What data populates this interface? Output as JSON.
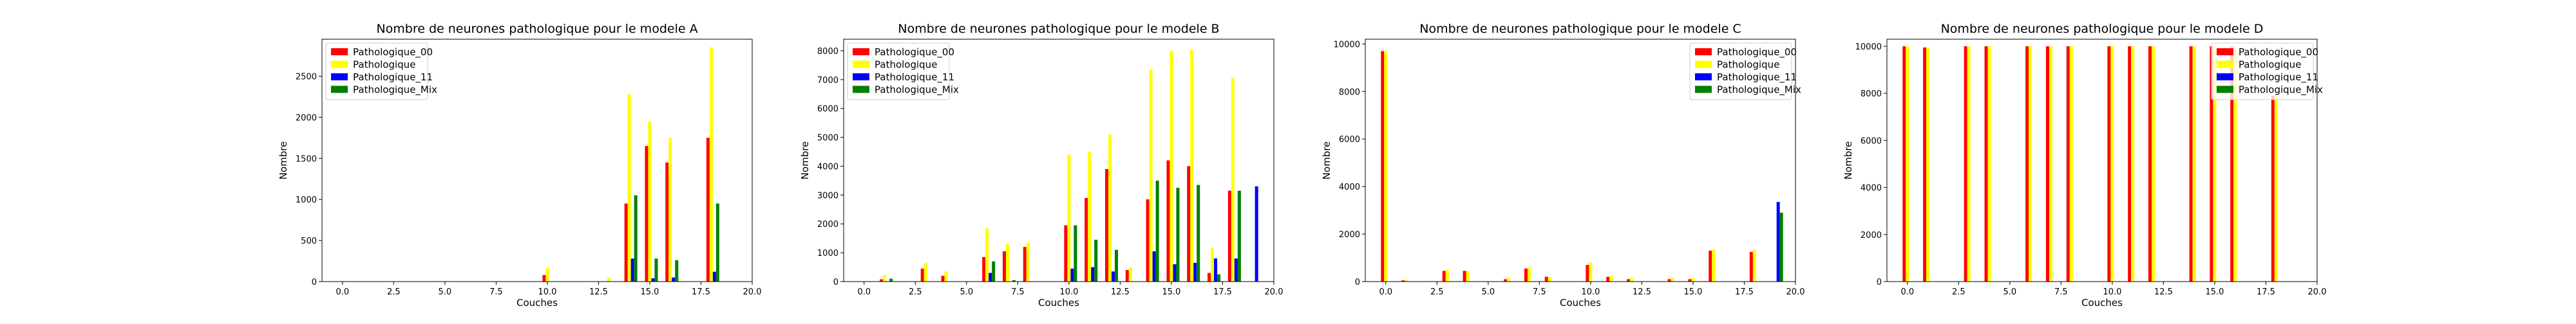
{
  "chart_data": [
    {
      "type": "bar",
      "title": "Nombre de neurones pathologique pour le modele A",
      "xlabel": "Couches",
      "ylabel": "Nombre",
      "xlim": [
        -1,
        20
      ],
      "ylim": [
        0,
        2950
      ],
      "xticks": [
        "0.0",
        "2.5",
        "5.0",
        "7.5",
        "10.0",
        "12.5",
        "15.0",
        "17.5",
        "20.0"
      ],
      "yticks": [
        "0",
        "500",
        "1000",
        "1500",
        "2000",
        "2500"
      ],
      "legend": "upper left",
      "series": [
        {
          "name": "Pathologique_00",
          "color": "#ff0000",
          "x": [
            10,
            14,
            15,
            16,
            18
          ],
          "values": [
            80,
            950,
            1650,
            1450,
            1750
          ]
        },
        {
          "name": "Pathologique",
          "color": "#ffff00",
          "x": [
            10,
            13,
            14,
            15,
            16,
            18
          ],
          "values": [
            170,
            50,
            2280,
            1950,
            1750,
            2850
          ]
        },
        {
          "name": "Pathologique_11",
          "color": "#0000ff",
          "x": [
            14,
            15,
            16,
            18
          ],
          "values": [
            280,
            40,
            50,
            120
          ]
        },
        {
          "name": "Pathologique_Mix",
          "color": "#008000",
          "x": [
            14,
            15,
            16,
            18
          ],
          "values": [
            1050,
            280,
            260,
            950
          ]
        }
      ]
    },
    {
      "type": "bar",
      "title": "Nombre de neurones pathologique pour le modele B",
      "xlabel": "Couches",
      "ylabel": "Nombre",
      "xlim": [
        -1,
        20
      ],
      "ylim": [
        0,
        8400
      ],
      "xticks": [
        "0.0",
        "2.5",
        "5.0",
        "7.5",
        "10.0",
        "12.5",
        "15.0",
        "17.5",
        "20.0"
      ],
      "yticks": [
        "0",
        "1000",
        "2000",
        "3000",
        "4000",
        "5000",
        "6000",
        "7000",
        "8000"
      ],
      "legend": "upper left",
      "series": [
        {
          "name": "Pathologique_00",
          "color": "#ff0000",
          "x": [
            1,
            3,
            4,
            6,
            7,
            8,
            10,
            11,
            12,
            13,
            14,
            15,
            16,
            17,
            18
          ],
          "values": [
            80,
            450,
            200,
            850,
            1050,
            1200,
            1950,
            2900,
            3900,
            400,
            2850,
            4200,
            4000,
            300,
            3150
          ]
        },
        {
          "name": "Pathologique",
          "color": "#ffff00",
          "x": [
            1,
            3,
            4,
            6,
            7,
            8,
            10,
            11,
            12,
            13,
            14,
            15,
            16,
            17,
            18
          ],
          "values": [
            230,
            650,
            350,
            1850,
            1300,
            1350,
            4400,
            4500,
            5100,
            500,
            7350,
            8000,
            8050,
            1150,
            7050
          ]
        },
        {
          "name": "Pathologique_11",
          "color": "#0000ff",
          "x": [
            6,
            10,
            11,
            12,
            14,
            15,
            16,
            17,
            18,
            19
          ],
          "values": [
            300,
            450,
            500,
            350,
            1050,
            600,
            650,
            800,
            800,
            3300
          ]
        },
        {
          "name": "Pathologique_Mix",
          "color": "#008000",
          "x": [
            1,
            6,
            7,
            10,
            11,
            12,
            14,
            15,
            16,
            17,
            18
          ],
          "values": [
            100,
            700,
            50,
            1950,
            1450,
            1100,
            3500,
            3250,
            3350,
            250,
            3150
          ]
        }
      ]
    },
    {
      "type": "bar",
      "title": "Nombre de neurones pathologique pour le modele C",
      "xlabel": "Couches",
      "ylabel": "Nombre",
      "xlim": [
        -1,
        20
      ],
      "ylim": [
        0,
        10200
      ],
      "xticks": [
        "0.0",
        "2.5",
        "5.0",
        "7.5",
        "10.0",
        "12.5",
        "15.0",
        "17.5",
        "20.0"
      ],
      "yticks": [
        "0",
        "2000",
        "4000",
        "6000",
        "8000",
        "10000"
      ],
      "legend": "upper right",
      "series": [
        {
          "name": "Pathologique_00",
          "color": "#ff0000",
          "x": [
            0,
            1,
            3,
            4,
            6,
            7,
            8,
            10,
            11,
            12,
            14,
            15,
            16,
            18
          ],
          "values": [
            9700,
            50,
            450,
            450,
            100,
            550,
            200,
            700,
            200,
            100,
            100,
            100,
            1300,
            1250
          ]
        },
        {
          "name": "Pathologique",
          "color": "#ffff00",
          "x": [
            0,
            1,
            3,
            4,
            6,
            7,
            8,
            10,
            11,
            12,
            14,
            15,
            16,
            18
          ],
          "values": [
            9700,
            80,
            500,
            450,
            150,
            600,
            200,
            800,
            250,
            150,
            150,
            150,
            1350,
            1350
          ]
        },
        {
          "name": "Pathologique_11",
          "color": "#0000ff",
          "x": [
            19
          ],
          "values": [
            3350
          ]
        },
        {
          "name": "Pathologique_Mix",
          "color": "#008000",
          "x": [
            19
          ],
          "values": [
            2900
          ]
        }
      ]
    },
    {
      "type": "bar",
      "title": "Nombre de neurones pathologique pour le modele D",
      "xlabel": "Couches",
      "ylabel": "Nombre",
      "xlim": [
        -1,
        20
      ],
      "ylim": [
        0,
        10300
      ],
      "xticks": [
        "0.0",
        "2.5",
        "5.0",
        "7.5",
        "10.0",
        "12.5",
        "15.0",
        "17.5",
        "20.0"
      ],
      "yticks": [
        "0",
        "2000",
        "4000",
        "6000",
        "8000",
        "10000"
      ],
      "legend": "upper right",
      "series": [
        {
          "name": "Pathologique_00",
          "color": "#ff0000",
          "x": [
            0,
            1,
            3,
            4,
            6,
            7,
            8,
            10,
            11,
            12,
            14,
            15,
            16,
            18
          ],
          "values": [
            10000,
            9950,
            10000,
            10000,
            10000,
            10000,
            10000,
            10000,
            10000,
            10000,
            10000,
            10000,
            10000,
            7900
          ]
        },
        {
          "name": "Pathologique",
          "color": "#ffff00",
          "x": [
            0,
            1,
            3,
            4,
            6,
            7,
            8,
            10,
            11,
            12,
            14,
            15,
            16,
            18
          ],
          "values": [
            10000,
            9950,
            10000,
            10000,
            10000,
            10000,
            10000,
            10000,
            10000,
            10000,
            10000,
            10000,
            10000,
            7900
          ]
        },
        {
          "name": "Pathologique_11",
          "color": "#0000ff",
          "x": [],
          "values": []
        },
        {
          "name": "Pathologique_Mix",
          "color": "#008000",
          "x": [],
          "values": []
        }
      ]
    }
  ]
}
